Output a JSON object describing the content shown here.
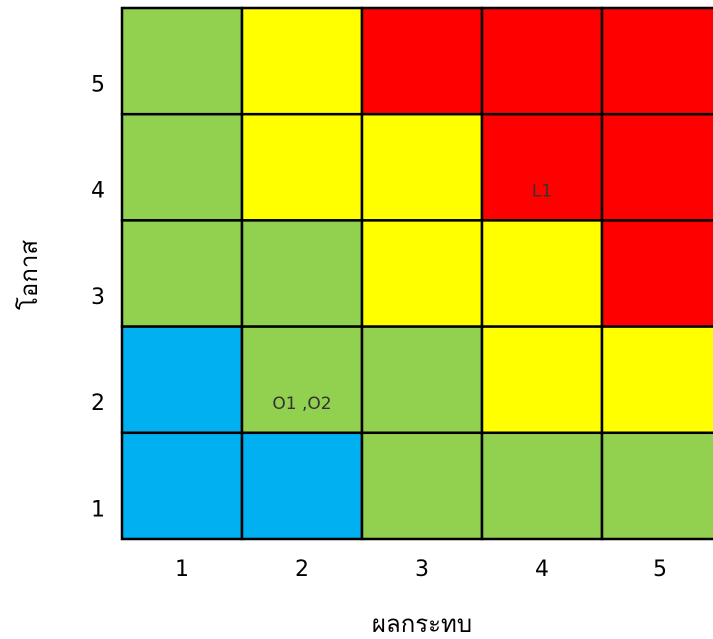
{
  "x_axis": {
    "label": "ผลกระทบ",
    "ticks": [
      "1",
      "2",
      "3",
      "4",
      "5"
    ]
  },
  "y_axis": {
    "label": "โอกาส",
    "ticks": [
      "5",
      "4",
      "3",
      "2",
      "1"
    ]
  },
  "grid": {
    "rows": [
      [
        {
          "color": "#92d050"
        },
        {
          "color": "#ffff00"
        },
        {
          "color": "#ff0000"
        },
        {
          "color": "#ff0000"
        },
        {
          "color": "#ff0000"
        }
      ],
      [
        {
          "color": "#92d050"
        },
        {
          "color": "#ffff00"
        },
        {
          "color": "#ffff00"
        },
        {
          "color": "#ff0000",
          "label": "L1"
        },
        {
          "color": "#ff0000"
        }
      ],
      [
        {
          "color": "#92d050"
        },
        {
          "color": "#92d050"
        },
        {
          "color": "#ffff00"
        },
        {
          "color": "#ffff00"
        },
        {
          "color": "#ff0000"
        }
      ],
      [
        {
          "color": "#00b0f0"
        },
        {
          "color": "#92d050",
          "label": "O1 ,O2"
        },
        {
          "color": "#92d050"
        },
        {
          "color": "#ffff00"
        },
        {
          "color": "#ffff00"
        }
      ],
      [
        {
          "color": "#00b0f0"
        },
        {
          "color": "#00b0f0"
        },
        {
          "color": "#92d050"
        },
        {
          "color": "#92d050"
        },
        {
          "color": "#92d050"
        }
      ]
    ]
  }
}
